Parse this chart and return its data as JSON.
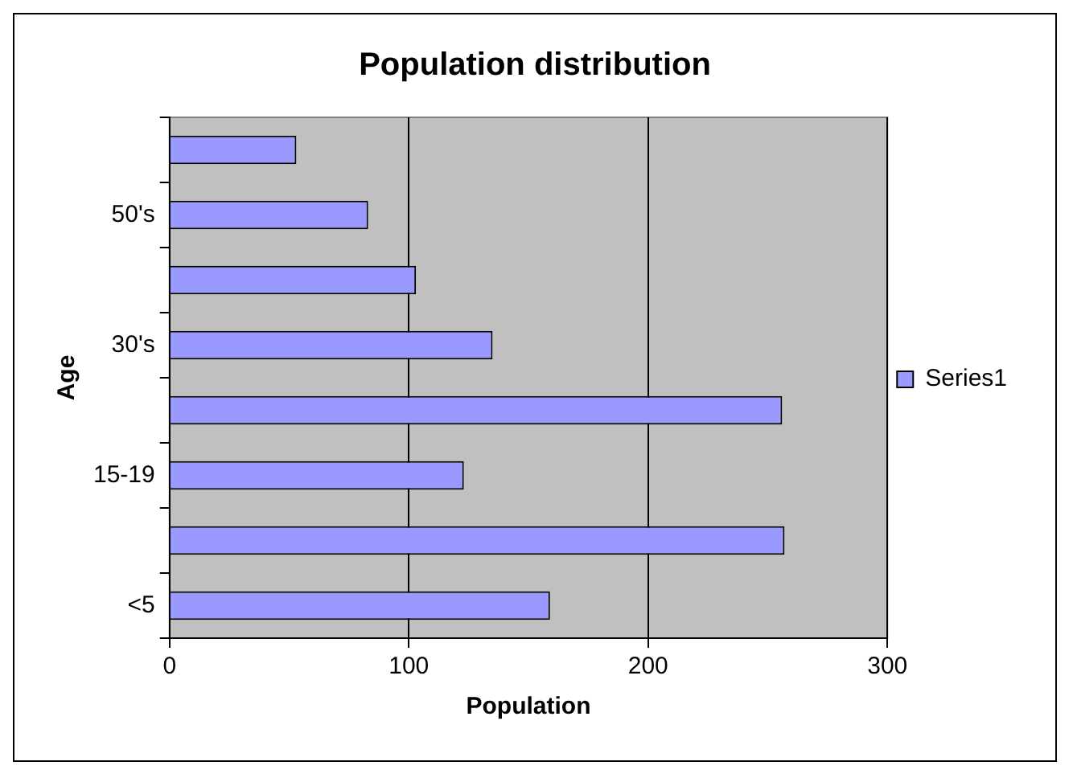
{
  "chart_data": {
    "type": "bar",
    "orientation": "horizontal",
    "title": "Population distribution",
    "xlabel": "Population",
    "ylabel": "Age",
    "categories": [
      null,
      "50's",
      null,
      "30's",
      null,
      "15-19",
      null,
      "<5"
    ],
    "series": [
      {
        "name": "Series1",
        "color": "#9999ff",
        "values": [
          53,
          83,
          103,
          135,
          256,
          123,
          257,
          159
        ]
      }
    ],
    "xlim": [
      0,
      300
    ],
    "xticks": [
      0,
      100,
      200,
      300
    ],
    "grid": "x",
    "legend": "right"
  }
}
